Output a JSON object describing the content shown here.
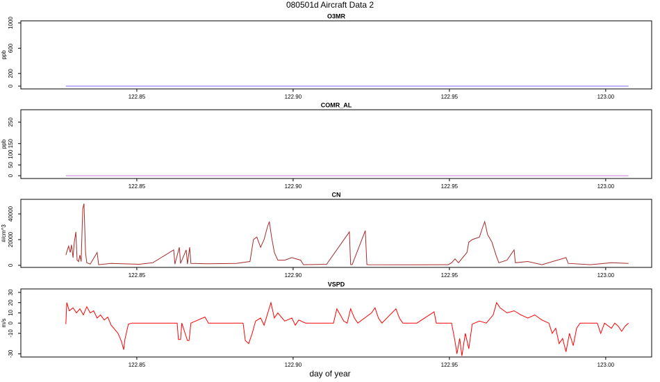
{
  "title": "080501d   Aircraft Data 2",
  "xlabel": "day of year",
  "chart_data": [
    {
      "type": "line",
      "title": "O3MR",
      "ylabel": "ppb",
      "color": "#7b68ee",
      "x": [
        122.8273,
        122.9,
        123.0073
      ],
      "values": [
        0,
        0,
        0
      ],
      "xlim": [
        122.8129,
        123.0147
      ],
      "xticks": [
        122.85,
        {
          "value": 122.9,
          "label": "122.90"
        },
        122.95,
        {
          "value": 123,
          "label": "123.00"
        }
      ],
      "ylim": [
        -44,
        1033
      ],
      "yticks": [
        0,
        200,
        600,
        1000
      ]
    },
    {
      "type": "line",
      "title": "COMR_AL",
      "ylabel": "ppb",
      "color": "#c77ddb",
      "x": [
        122.8273,
        122.9,
        123.0073
      ],
      "values": [
        0,
        0,
        0
      ],
      "xlim": [
        122.8129,
        123.0147
      ],
      "xticks": [
        122.85,
        {
          "value": 122.9,
          "label": "122.90"
        },
        122.95,
        {
          "value": 123,
          "label": "123.00"
        }
      ],
      "ylim": [
        -13,
        308
      ],
      "yticks": [
        0,
        50,
        100,
        150,
        250
      ]
    },
    {
      "type": "line",
      "title": "CN",
      "ylabel": "#/cm^3",
      "color": "#a52a2a",
      "x": [
        122.8273,
        122.8278,
        122.8282,
        122.8287,
        122.8291,
        122.8296,
        122.83,
        122.8305,
        122.8309,
        122.8314,
        122.8318,
        122.8322,
        122.8327,
        122.8331,
        122.8336,
        122.834,
        122.8351,
        122.8373,
        122.8378,
        122.8418,
        122.8507,
        122.8551,
        122.8618,
        122.8622,
        122.8636,
        122.864,
        122.8658,
        122.8662,
        122.8669,
        122.8673,
        122.8729,
        122.8818,
        122.8862,
        122.8873,
        122.8884,
        122.8896,
        122.8907,
        122.8918,
        122.8924,
        122.8931,
        122.894,
        122.8951,
        122.8973,
        122.8996,
        122.9024,
        122.9033,
        122.9107,
        122.918,
        122.9184,
        122.9189,
        122.9231,
        122.9236,
        122.924,
        122.9396,
        122.9496,
        122.9507,
        122.9518,
        122.9529,
        122.9556,
        122.9562,
        122.9573,
        122.9596,
        122.9607,
        122.9613,
        122.9622,
        122.9636,
        122.9649,
        122.9658,
        122.9684,
        122.9707,
        122.9711,
        122.9751,
        122.9796,
        122.9873,
        122.988,
        122.9951,
        123.0018,
        123.0073
      ],
      "values": [
        8000,
        12000,
        15000,
        10000,
        16000,
        6000,
        18000,
        26000,
        4000,
        3000,
        8000,
        3000,
        44000,
        48000,
        10000,
        2000,
        1000,
        10000,
        500,
        1500,
        800,
        2000,
        12000,
        1000,
        14000,
        1500,
        12000,
        1000,
        14000,
        1500,
        1200,
        1500,
        3000,
        20000,
        22000,
        14000,
        20000,
        30000,
        34000,
        22000,
        10000,
        4000,
        4000,
        6000,
        4000,
        500,
        800,
        26000,
        600,
        500,
        27000,
        600,
        500,
        400,
        500,
        2000,
        5000,
        2000,
        10000,
        18000,
        20000,
        22000,
        30000,
        34000,
        24000,
        18000,
        8000,
        2000,
        4000,
        12000,
        2000,
        3000,
        500,
        6000,
        1500,
        500,
        2000,
        1500
      ],
      "xlim": [
        122.8129,
        123.0147
      ],
      "xticks": [
        122.85,
        {
          "value": 122.9,
          "label": "122.90"
        },
        122.95,
        {
          "value": 123,
          "label": "123.00"
        }
      ],
      "ylim": [
        -1620,
        51350
      ],
      "yticks": [
        0,
        20000,
        40000
      ]
    },
    {
      "type": "line",
      "title": "VSPD",
      "ylabel": "m/s",
      "color": "#ff0000",
      "x": [
        122.8273,
        122.8276,
        122.8284,
        122.8296,
        122.8307,
        122.8318,
        122.8329,
        122.834,
        122.8351,
        122.8362,
        122.8373,
        122.8384,
        122.8396,
        122.8407,
        122.8418,
        122.8429,
        122.844,
        122.8451,
        122.8458,
        122.8462,
        122.8473,
        122.8484,
        122.8629,
        122.8633,
        122.864,
        122.8644,
        122.8662,
        122.8667,
        122.8673,
        122.8718,
        122.8729,
        122.884,
        122.8847,
        122.8858,
        122.8869,
        122.888,
        122.8896,
        122.8907,
        122.8929,
        122.894,
        122.8951,
        122.8973,
        122.8996,
        122.9007,
        122.9018,
        122.904,
        122.9129,
        122.914,
        122.9151,
        122.9162,
        122.9173,
        122.9184,
        122.9196,
        122.9207,
        122.9251,
        122.9262,
        122.9273,
        122.9284,
        122.9329,
        122.934,
        122.9351,
        122.9396,
        122.9451,
        122.9458,
        122.9507,
        122.9518,
        122.9524,
        122.9533,
        122.954,
        122.9551,
        122.9562,
        122.9573,
        122.9596,
        122.9618,
        122.964,
        122.9651,
        122.9662,
        122.9684,
        122.9707,
        122.9729,
        122.9751,
        122.9773,
        122.9796,
        122.9818,
        122.9829,
        122.984,
        122.9851,
        122.9862,
        122.9873,
        122.9884,
        122.9896,
        122.9907,
        122.9918,
        122.9929,
        122.9973,
        122.9984,
        122.9996,
        123.0018,
        123.0029,
        123.004,
        123.0051,
        123.0062,
        123.0073
      ],
      "values": [
        -1,
        20,
        12,
        15,
        10,
        14,
        8,
        16,
        10,
        12,
        5,
        8,
        3,
        6,
        -2,
        -6,
        -10,
        -18,
        -26,
        -16,
        -1,
        0,
        0,
        -16,
        -16,
        0,
        -17,
        -17,
        0,
        6,
        0,
        0,
        -17,
        -20,
        -10,
        2,
        5,
        -2,
        20,
        5,
        10,
        2,
        5,
        -2,
        3,
        0,
        0,
        14,
        8,
        2,
        0,
        14,
        5,
        0,
        10,
        15,
        5,
        0,
        14,
        5,
        0,
        0,
        11,
        0,
        0,
        -18,
        -30,
        -15,
        -32,
        -10,
        -25,
        -1,
        2,
        0,
        8,
        20,
        15,
        10,
        12,
        8,
        5,
        8,
        3,
        0,
        -10,
        -5,
        -20,
        -15,
        -28,
        -10,
        -22,
        -5,
        0,
        0,
        0,
        -10,
        0,
        -5,
        0,
        -3,
        -8,
        -3,
        0
      ],
      "xlim": [
        122.8129,
        123.0147
      ],
      "xticks": [
        122.85,
        {
          "value": 122.9,
          "label": "122.90"
        },
        122.95,
        {
          "value": 123,
          "label": "123.00"
        }
      ],
      "ylim": [
        -33.1,
        33.4
      ],
      "yticks": [
        30,
        20,
        10,
        0,
        -10,
        -30
      ]
    }
  ]
}
